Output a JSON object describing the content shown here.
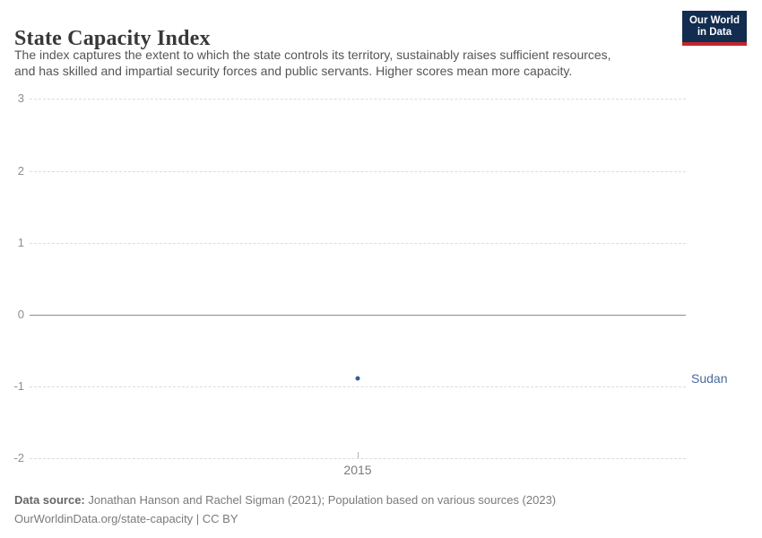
{
  "header": {
    "title": "State Capacity Index",
    "subtitle_lines": [
      "The index captures the extent to which the state controls its territory, sustainably raises sufficient resources,",
      "and has skilled and impartial security forces and public servants. Higher scores mean more capacity."
    ],
    "logo": {
      "line1": "Our World",
      "line2": "in Data",
      "bg_color": "#122d50",
      "accent_color": "#c1272d"
    }
  },
  "chart_data": {
    "type": "scatter",
    "title": "State Capacity Index",
    "x": [
      2015
    ],
    "series": [
      {
        "name": "Sudan",
        "values": [
          -0.89
        ],
        "color": "#3a5a9e"
      }
    ],
    "entity_label": "Sudan",
    "entity_label_color": "#4c6a9c",
    "y_ticks": [
      3,
      2,
      1,
      0,
      -1,
      -2
    ],
    "x_ticks": [
      "2015"
    ],
    "ylim": [
      -2,
      3
    ],
    "xlabel": "",
    "ylabel": "",
    "grid": "horizontal dashed gridlines, solid line at zero",
    "legend": "entity name labeled to the right of the data point"
  },
  "footer": {
    "datasource_label": "Data source:",
    "datasource_text": " Jonathan Hanson and Rachel Sigman (2021); Population based on various sources (2023)",
    "url_line": "OurWorldinData.org/state-capacity | CC BY"
  }
}
